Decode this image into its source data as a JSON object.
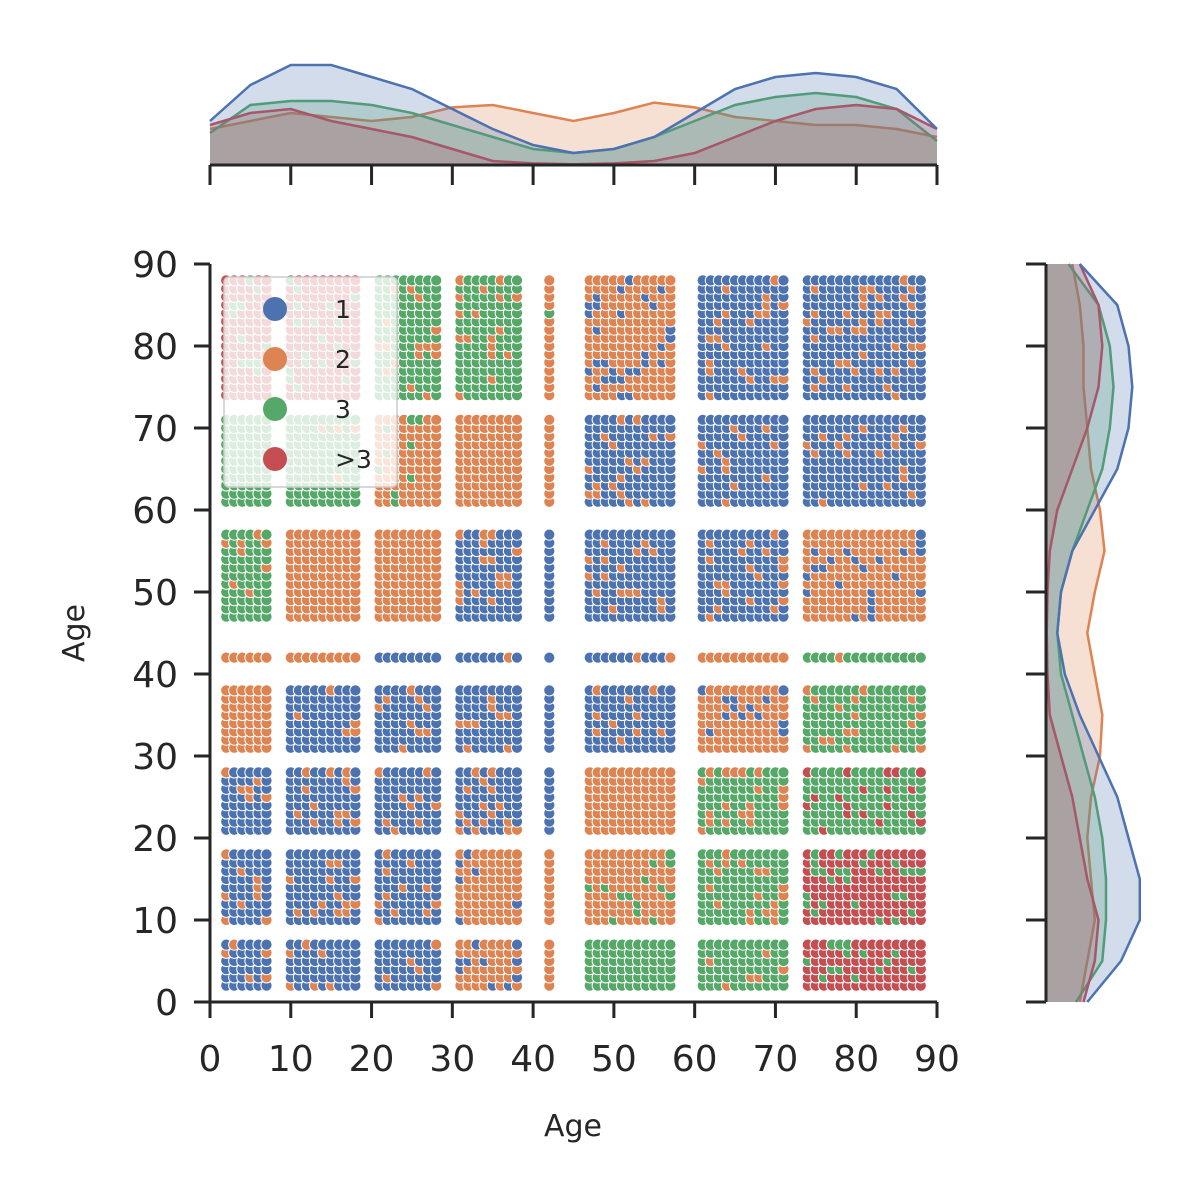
{
  "chart_data": {
    "type": "scatter",
    "title": "",
    "xlabel": "Age",
    "ylabel": "Age",
    "xlim": [
      0,
      90
    ],
    "ylim": [
      0,
      90
    ],
    "xticks": [
      0,
      10,
      20,
      30,
      40,
      50,
      60,
      70,
      80,
      90
    ],
    "yticks": [
      0,
      10,
      20,
      30,
      40,
      50,
      60,
      70,
      80,
      90
    ],
    "grid": false,
    "legend_position": "upper-left",
    "series": [
      {
        "name": "1",
        "color": "#4c72b0"
      },
      {
        "name": "2",
        "color": "#dd8452"
      },
      {
        "name": "3",
        "color": "#55a868"
      },
      {
        "name": ">3",
        "color": "#c44e52"
      }
    ],
    "age_bands": [
      {
        "range": [
          2,
          7
        ],
        "step": 1
      },
      {
        "range": [
          10,
          18
        ],
        "step": 1
      },
      {
        "range": [
          21,
          28
        ],
        "step": 1
      },
      {
        "range": [
          31,
          38
        ],
        "step": 1
      },
      {
        "range": [
          42,
          42
        ],
        "step": 1
      },
      {
        "range": [
          47,
          57
        ],
        "step": 1
      },
      {
        "range": [
          61,
          71
        ],
        "step": 1
      },
      {
        "range": [
          74,
          88
        ],
        "step": 1
      }
    ],
    "cell_groups": [
      {
        "x": [
          2,
          7
        ],
        "y": [
          2,
          7
        ],
        "group": "1",
        "mix": "2"
      },
      {
        "x": [
          2,
          7
        ],
        "y": [
          10,
          18
        ],
        "group": "1",
        "mix": "2"
      },
      {
        "x": [
          2,
          7
        ],
        "y": [
          21,
          28
        ],
        "group": "1",
        "mix": "2"
      },
      {
        "x": [
          2,
          7
        ],
        "y": [
          31,
          42
        ],
        "group": "2"
      },
      {
        "x": [
          2,
          7
        ],
        "y": [
          47,
          57
        ],
        "group": "3",
        "mix": "2"
      },
      {
        "x": [
          2,
          7
        ],
        "y": [
          61,
          71
        ],
        "group": "3"
      },
      {
        "x": [
          2,
          7
        ],
        "y": [
          74,
          88
        ],
        "group": ">3",
        "mix": "3"
      },
      {
        "x": [
          10,
          18
        ],
        "y": [
          2,
          28
        ],
        "group": "1",
        "mix": "2"
      },
      {
        "x": [
          10,
          18
        ],
        "y": [
          31,
          38
        ],
        "group": "1",
        "mix": "2"
      },
      {
        "x": [
          10,
          18
        ],
        "y": [
          42,
          57
        ],
        "group": "2"
      },
      {
        "x": [
          10,
          18
        ],
        "y": [
          61,
          71
        ],
        "group": "3",
        "mix": "2"
      },
      {
        "x": [
          10,
          18
        ],
        "y": [
          74,
          88
        ],
        "group": ">3",
        "mix": "3"
      },
      {
        "x": [
          21,
          28
        ],
        "y": [
          2,
          38
        ],
        "group": "1",
        "mix": "2"
      },
      {
        "x": [
          21,
          28
        ],
        "y": [
          42,
          42
        ],
        "group": "1"
      },
      {
        "x": [
          21,
          28
        ],
        "y": [
          47,
          57
        ],
        "group": "2"
      },
      {
        "x": [
          21,
          28
        ],
        "y": [
          61,
          71
        ],
        "group": "2",
        "mix": "3"
      },
      {
        "x": [
          21,
          28
        ],
        "y": [
          74,
          88
        ],
        "group": "3",
        "mix": "2"
      },
      {
        "x": [
          31,
          38
        ],
        "y": [
          2,
          18
        ],
        "group": "2",
        "mix": "1"
      },
      {
        "x": [
          31,
          38
        ],
        "y": [
          21,
          42
        ],
        "group": "1",
        "mix": "2"
      },
      {
        "x": [
          31,
          38
        ],
        "y": [
          47,
          57
        ],
        "group": "1",
        "mix": "2"
      },
      {
        "x": [
          31,
          38
        ],
        "y": [
          61,
          71
        ],
        "group": "2"
      },
      {
        "x": [
          31,
          38
        ],
        "y": [
          74,
          88
        ],
        "group": "3",
        "mix": "2"
      },
      {
        "x": [
          42,
          42
        ],
        "y": [
          2,
          18
        ],
        "group": "2"
      },
      {
        "x": [
          42,
          42
        ],
        "y": [
          21,
          57
        ],
        "group": "1"
      },
      {
        "x": [
          42,
          42
        ],
        "y": [
          61,
          71
        ],
        "group": "2"
      },
      {
        "x": [
          42,
          42
        ],
        "y": [
          74,
          88
        ],
        "group": "2",
        "mix": "3"
      },
      {
        "x": [
          47,
          57
        ],
        "y": [
          2,
          7
        ],
        "group": "3"
      },
      {
        "x": [
          47,
          57
        ],
        "y": [
          10,
          18
        ],
        "group": "2",
        "mix": "3"
      },
      {
        "x": [
          47,
          57
        ],
        "y": [
          21,
          28
        ],
        "group": "2"
      },
      {
        "x": [
          47,
          57
        ],
        "y": [
          31,
          42
        ],
        "group": "1",
        "mix": "2"
      },
      {
        "x": [
          47,
          57
        ],
        "y": [
          47,
          57
        ],
        "group": "1",
        "mix": "2"
      },
      {
        "x": [
          47,
          57
        ],
        "y": [
          61,
          71
        ],
        "group": "1",
        "mix": "2"
      },
      {
        "x": [
          47,
          57
        ],
        "y": [
          74,
          88
        ],
        "group": "2",
        "mix": "1"
      },
      {
        "x": [
          61,
          71
        ],
        "y": [
          2,
          18
        ],
        "group": "3",
        "mix": "2"
      },
      {
        "x": [
          61,
          71
        ],
        "y": [
          21,
          28
        ],
        "group": "3",
        "mix": "2"
      },
      {
        "x": [
          61,
          71
        ],
        "y": [
          31,
          42
        ],
        "group": "2",
        "mix": "1"
      },
      {
        "x": [
          61,
          71
        ],
        "y": [
          47,
          57
        ],
        "group": "1",
        "mix": "2"
      },
      {
        "x": [
          61,
          71
        ],
        "y": [
          61,
          71
        ],
        "group": "1",
        "mix": "2"
      },
      {
        "x": [
          61,
          71
        ],
        "y": [
          74,
          88
        ],
        "group": "1",
        "mix": "2"
      },
      {
        "x": [
          74,
          88
        ],
        "y": [
          2,
          18
        ],
        "group": ">3",
        "mix": "3"
      },
      {
        "x": [
          74,
          88
        ],
        "y": [
          21,
          28
        ],
        "group": "3",
        "mix": ">3"
      },
      {
        "x": [
          74,
          88
        ],
        "y": [
          31,
          42
        ],
        "group": "3",
        "mix": "2"
      },
      {
        "x": [
          74,
          88
        ],
        "y": [
          47,
          57
        ],
        "group": "2",
        "mix": "1"
      },
      {
        "x": [
          74,
          88
        ],
        "y": [
          61,
          71
        ],
        "group": "1",
        "mix": "2"
      },
      {
        "x": [
          74,
          88
        ],
        "y": [
          74,
          88
        ],
        "group": "1",
        "mix": "2"
      }
    ],
    "marginal_kde_x": {
      "x": [
        0,
        5,
        10,
        15,
        20,
        25,
        30,
        35,
        40,
        45,
        50,
        55,
        60,
        65,
        70,
        75,
        80,
        85,
        90
      ],
      "series": [
        {
          "name": "1",
          "values": [
            0.55,
            1.0,
            1.25,
            1.25,
            1.1,
            0.95,
            0.7,
            0.45,
            0.25,
            0.15,
            0.2,
            0.35,
            0.65,
            0.95,
            1.1,
            1.15,
            1.1,
            0.95,
            0.45
          ]
        },
        {
          "name": "2",
          "values": [
            0.45,
            0.55,
            0.65,
            0.6,
            0.55,
            0.6,
            0.72,
            0.75,
            0.65,
            0.55,
            0.65,
            0.78,
            0.72,
            0.6,
            0.55,
            0.5,
            0.5,
            0.45,
            0.35
          ]
        },
        {
          "name": "3",
          "values": [
            0.4,
            0.75,
            0.8,
            0.8,
            0.75,
            0.65,
            0.5,
            0.35,
            0.2,
            0.15,
            0.2,
            0.35,
            0.55,
            0.75,
            0.85,
            0.9,
            0.85,
            0.7,
            0.3
          ]
        },
        {
          "name": ">3",
          "values": [
            0.5,
            0.65,
            0.7,
            0.55,
            0.45,
            0.35,
            0.2,
            0.05,
            0.02,
            0.01,
            0.02,
            0.05,
            0.15,
            0.35,
            0.55,
            0.7,
            0.75,
            0.7,
            0.45
          ]
        }
      ]
    },
    "marginal_kde_y": {
      "y": [
        0,
        5,
        10,
        15,
        20,
        25,
        30,
        35,
        40,
        45,
        50,
        55,
        60,
        65,
        70,
        75,
        80,
        85,
        90
      ],
      "series": [
        {
          "name": "1",
          "values": [
            0.55,
            1.0,
            1.25,
            1.25,
            1.1,
            0.95,
            0.7,
            0.45,
            0.25,
            0.15,
            0.2,
            0.35,
            0.65,
            0.95,
            1.1,
            1.15,
            1.1,
            0.95,
            0.45
          ]
        },
        {
          "name": "2",
          "values": [
            0.45,
            0.55,
            0.65,
            0.6,
            0.55,
            0.6,
            0.72,
            0.75,
            0.65,
            0.55,
            0.65,
            0.78,
            0.72,
            0.6,
            0.55,
            0.5,
            0.5,
            0.45,
            0.35
          ]
        },
        {
          "name": "3",
          "values": [
            0.4,
            0.75,
            0.8,
            0.8,
            0.75,
            0.65,
            0.5,
            0.35,
            0.2,
            0.15,
            0.2,
            0.35,
            0.55,
            0.75,
            0.85,
            0.9,
            0.85,
            0.7,
            0.3
          ]
        },
        {
          "name": ">3",
          "values": [
            0.5,
            0.65,
            0.7,
            0.55,
            0.45,
            0.35,
            0.2,
            0.05,
            0.02,
            0.01,
            0.02,
            0.05,
            0.15,
            0.35,
            0.55,
            0.7,
            0.75,
            0.7,
            0.45
          ]
        }
      ]
    }
  }
}
